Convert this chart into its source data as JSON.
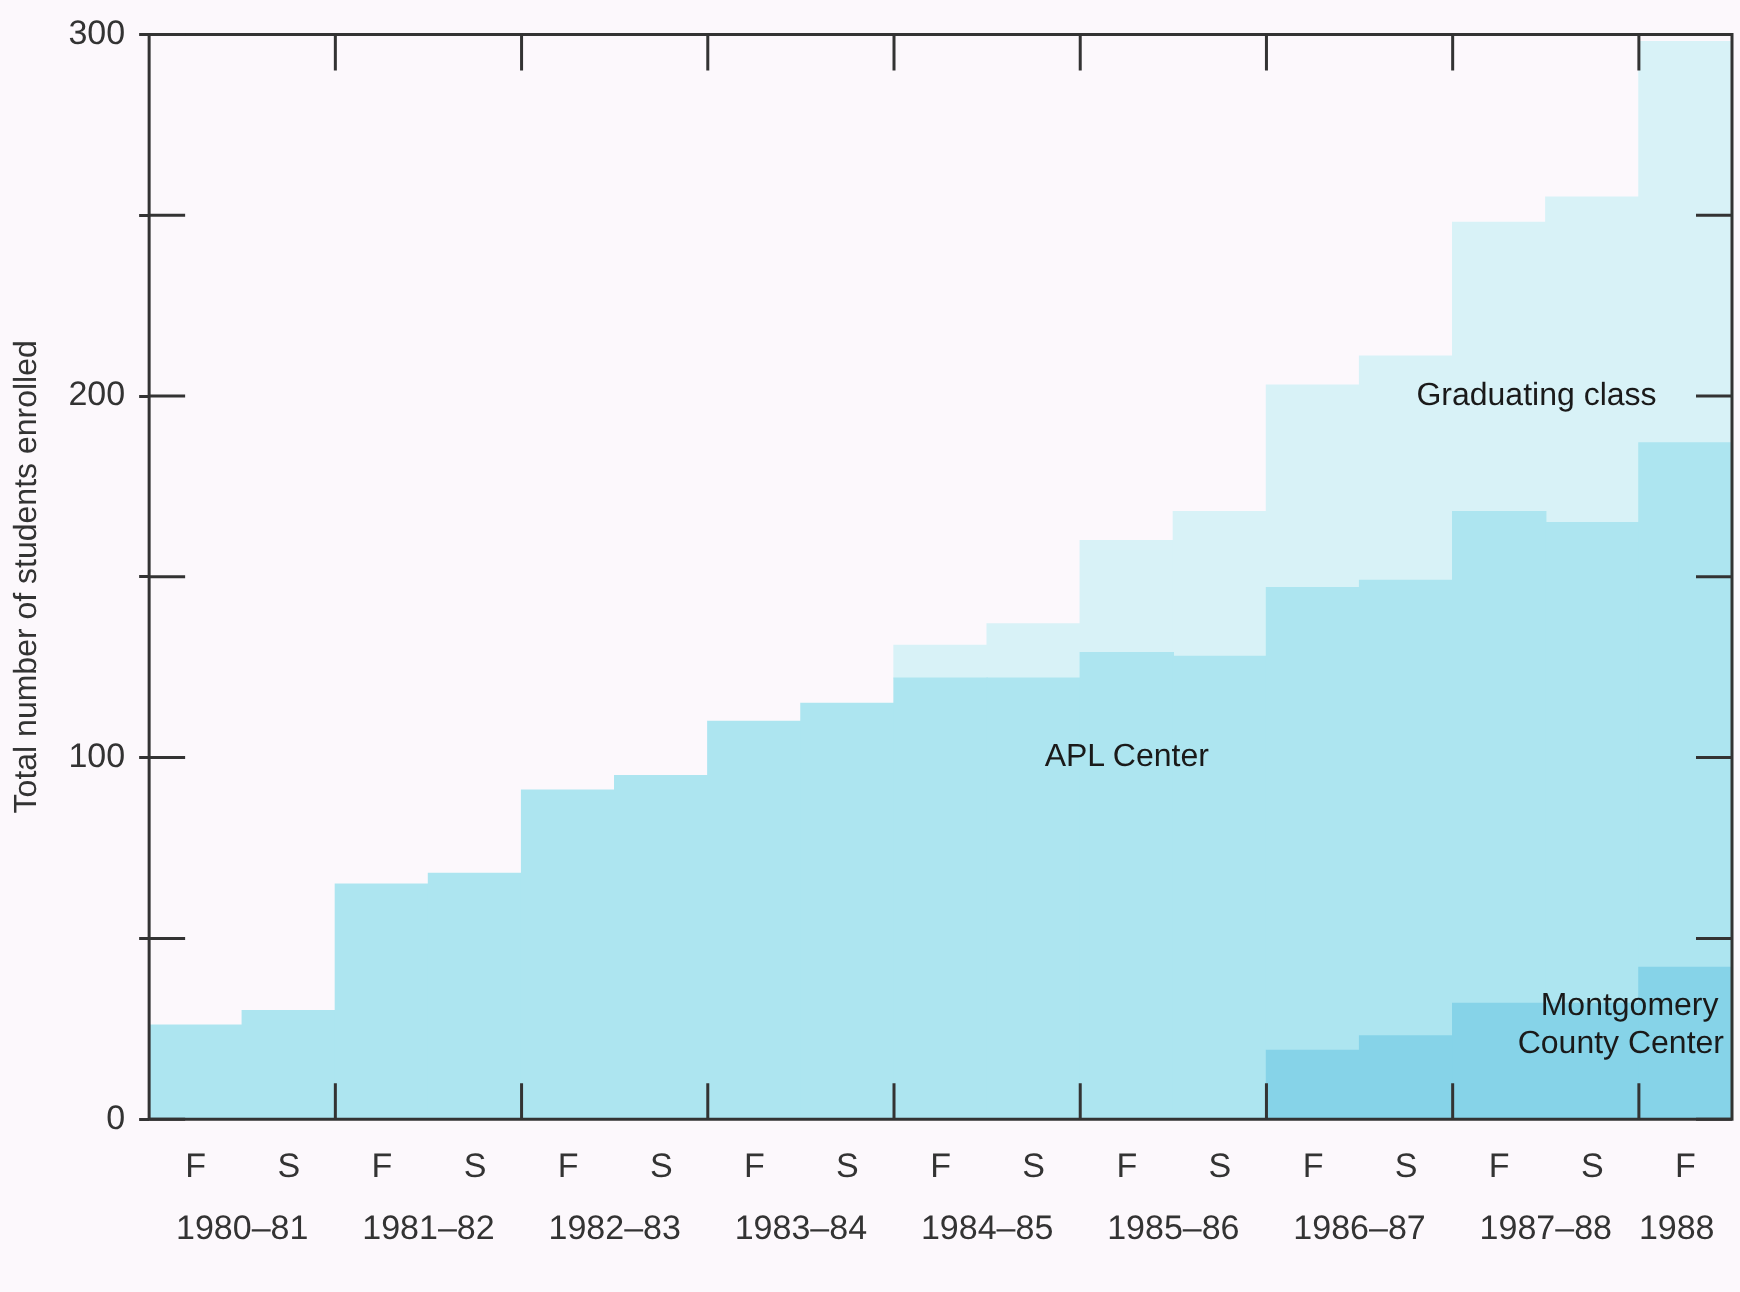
{
  "chart_data": {
    "type": "bar",
    "stacked": true,
    "ylabel": "Total number of students enrolled",
    "categories": [
      "F",
      "S",
      "F",
      "S",
      "F",
      "S",
      "F",
      "S",
      "F",
      "S",
      "F",
      "S",
      "F",
      "S",
      "F",
      "S",
      "F"
    ],
    "series": [
      {
        "name": "Montgomery County Center",
        "color": "#86d3e8",
        "values": [
          null,
          null,
          null,
          null,
          null,
          null,
          null,
          null,
          null,
          null,
          null,
          null,
          19,
          23,
          32,
          32,
          42
        ]
      },
      {
        "name": "APL Center",
        "color": "#ade5f0",
        "values": [
          26,
          30,
          65,
          68,
          91,
          95,
          110,
          115,
          122,
          122,
          129,
          128,
          128,
          126,
          136,
          133,
          145
        ]
      },
      {
        "name": "Graduating class",
        "color": "#d8f2f7",
        "values": [
          null,
          null,
          null,
          null,
          null,
          null,
          null,
          null,
          9,
          15,
          31,
          40,
          56,
          62,
          80,
          90,
          111
        ]
      }
    ],
    "ylim": [
      0,
      300
    ],
    "yticks": [
      0,
      {
        "value": 50,
        "label": null
      },
      100,
      {
        "value": 150,
        "label": null
      },
      200,
      {
        "value": 250,
        "label": null
      },
      300
    ],
    "annotations": [
      "1980–81",
      "1981–82",
      "1982–83",
      "1983–84",
      "1984–85",
      "1985–86",
      "1986–87",
      "1987–88",
      "1988"
    ],
    "legend": false,
    "grid": false
  }
}
